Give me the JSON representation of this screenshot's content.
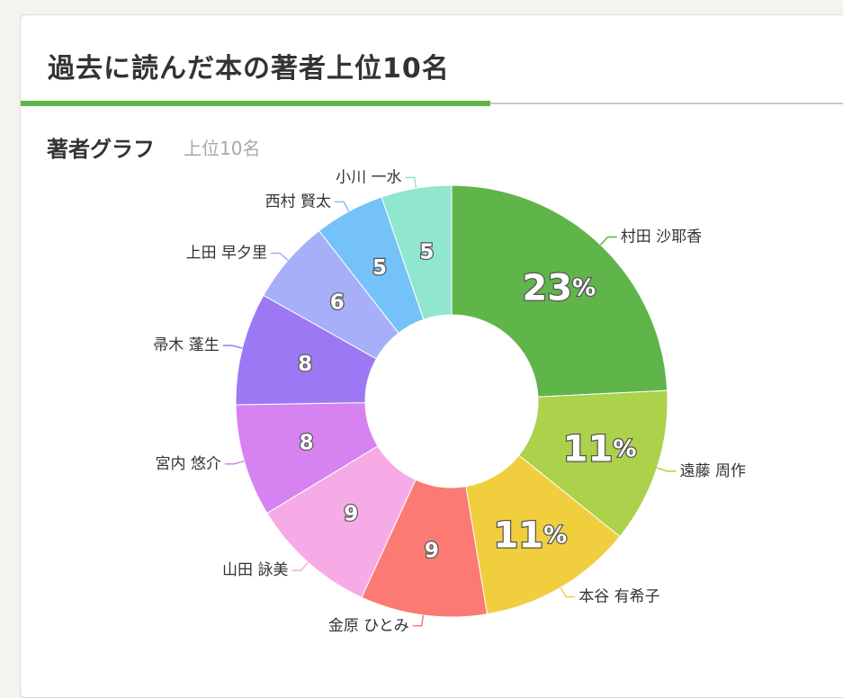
{
  "card": {
    "title": "過去に読んだ本の著者上位10名"
  },
  "section": {
    "title": "著者グラフ",
    "subtitle": "上位10名"
  },
  "chart_data": {
    "type": "pie",
    "variant": "donut",
    "categories": [
      "村田 沙耶香",
      "遠藤 周作",
      "本谷 有希子",
      "金原 ひとみ",
      "山田 詠美",
      "宮内 悠介",
      "帚木 蓬生",
      "上田 早夕里",
      "西村 賢太",
      "小川 一水"
    ],
    "values": [
      23,
      11,
      11,
      9,
      9,
      8,
      8,
      6,
      5,
      5
    ],
    "slice_labels": [
      "23%",
      "11%",
      "11%",
      "9",
      "9",
      "8",
      "8",
      "6",
      "5",
      "5"
    ],
    "colors": [
      "#5fb54a",
      "#acd14a",
      "#f0ce3e",
      "#fb7b74",
      "#f7abe6",
      "#d683f1",
      "#9c78f4",
      "#a6aff8",
      "#75c2f9",
      "#91e6cf"
    ]
  }
}
